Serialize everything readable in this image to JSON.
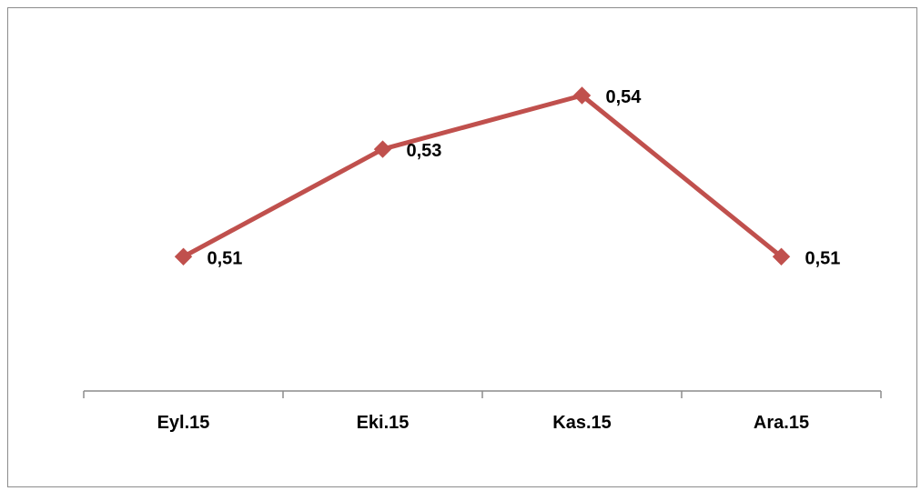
{
  "chart_data": {
    "type": "line",
    "title": "",
    "xlabel": "",
    "ylabel": "",
    "categories": [
      "Eyl.15",
      "Eki.15",
      "Kas.15",
      "Ara.15"
    ],
    "series": [
      {
        "values": [
          0.51,
          0.53,
          0.54,
          0.51
        ],
        "labels": [
          "0,51",
          "0,53",
          "0,54",
          "0,51"
        ],
        "color": "#c0504d",
        "marker": "diamond"
      }
    ],
    "ylim": [
      0.485,
      0.551
    ],
    "grid": false,
    "legend": "none",
    "axis_color": "#8c8c8c"
  }
}
